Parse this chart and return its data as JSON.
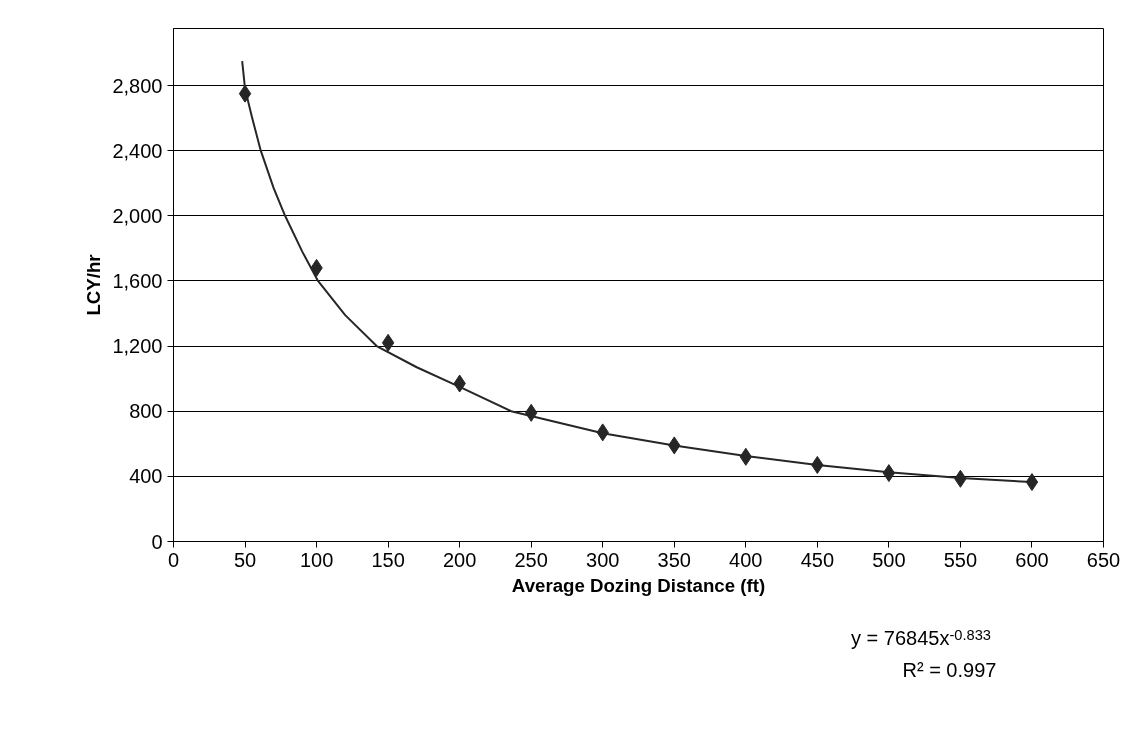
{
  "chart_data": {
    "type": "scatter",
    "xlabel": "Average Dozing Distance (ft)",
    "ylabel": "LCY/hr",
    "xlim": [
      0,
      650
    ],
    "xticks": [
      0,
      50,
      100,
      150,
      200,
      250,
      300,
      350,
      400,
      450,
      500,
      550,
      600,
      650
    ],
    "ylim": [
      0,
      3150
    ],
    "yticks": [
      0,
      {
        "value": 400,
        "label": "400"
      },
      {
        "value": 800,
        "label": "800"
      },
      {
        "value": 1200,
        "label": "1,200"
      },
      {
        "value": 1600,
        "label": "1,600"
      },
      {
        "value": 2000,
        "label": "2,000"
      },
      {
        "value": 2400,
        "label": "2,400"
      },
      {
        "value": 2800,
        "label": "2,800"
      }
    ],
    "grid": "y",
    "marker": "diamond",
    "series": [
      {
        "type": "scatter",
        "color": "#262626",
        "x": [
          50,
          100,
          150,
          200,
          250,
          300,
          350,
          400,
          450,
          500,
          550,
          600
        ],
        "values": [
          2750,
          1680,
          1220,
          970,
          790,
          670,
          590,
          520,
          470,
          420,
          385,
          365
        ]
      },
      {
        "type": "line",
        "marker": "none",
        "line_style": "solid",
        "color": "#262626",
        "x": [
          48,
          50,
          55,
          61,
          70,
          78,
          90,
          101,
          120,
          142,
          170,
          200,
          236,
          300,
          350,
          400,
          450,
          500,
          550,
          600
        ],
        "values": [
          2950,
          2780,
          2600,
          2400,
          2170,
          2000,
          1780,
          1600,
          1390,
          1200,
          1070,
          950,
          800,
          665,
          590,
          525,
          470,
          425,
          390,
          365
        ]
      }
    ],
    "annotations": [
      "y = 76845x$^{-0.833}$",
      "R² = 0.997"
    ]
  }
}
